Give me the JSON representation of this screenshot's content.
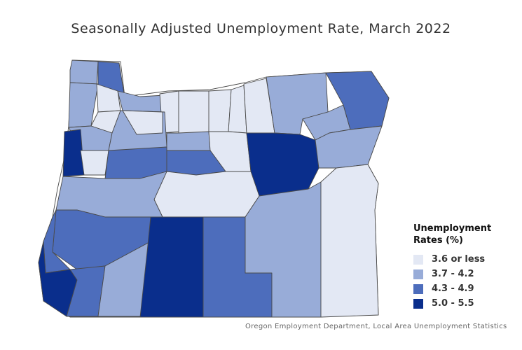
{
  "title": "Seasonally Adjusted Unemployment Rate, March 2022",
  "source": "Oregon Employment Department, Local Area Unemployment Statistics",
  "legend": {
    "title": "Unemployment Rates (%)",
    "items": [
      {
        "label": "3.6 or less",
        "color": "#e3e8f4"
      },
      {
        "label": "3.7 - 4.2",
        "color": "#98acd8"
      },
      {
        "label": "4.3 - 4.9",
        "color": "#4d6dbc"
      },
      {
        "label": "5.0 - 5.5",
        "color": "#0a2e8c"
      }
    ]
  },
  "regions": [
    {
      "name": "clatsop",
      "class": "3.7 - 4.2"
    },
    {
      "name": "columbia",
      "class": "4.3 - 4.9"
    },
    {
      "name": "tillamook",
      "class": "3.7 - 4.2"
    },
    {
      "name": "washington",
      "class": "3.6 or less"
    },
    {
      "name": "multnomah",
      "class": "3.7 - 4.2"
    },
    {
      "name": "hood-river",
      "class": "3.6 or less"
    },
    {
      "name": "wasco",
      "class": "3.6 or less"
    },
    {
      "name": "sherman",
      "class": "3.6 or less"
    },
    {
      "name": "gilliam",
      "class": "3.6 or less"
    },
    {
      "name": "morrow",
      "class": "3.6 or less"
    },
    {
      "name": "umatilla",
      "class": "3.7 - 4.2"
    },
    {
      "name": "union",
      "class": "3.7 - 4.2"
    },
    {
      "name": "wallowa",
      "class": "4.3 - 4.9"
    },
    {
      "name": "yamhill",
      "class": "3.6 or less"
    },
    {
      "name": "polk",
      "class": "3.7 - 4.2"
    },
    {
      "name": "marion",
      "class": "3.7 - 4.2"
    },
    {
      "name": "clackamas",
      "class": "3.6 or less"
    },
    {
      "name": "jefferson",
      "class": "3.7 - 4.2"
    },
    {
      "name": "wheeler",
      "class": "3.6 or less"
    },
    {
      "name": "grant",
      "class": "5.0 - 5.5"
    },
    {
      "name": "baker",
      "class": "3.7 - 4.2"
    },
    {
      "name": "lincoln",
      "class": "5.0 - 5.5"
    },
    {
      "name": "benton",
      "class": "3.6 or less"
    },
    {
      "name": "linn",
      "class": "4.3 - 4.9"
    },
    {
      "name": "crook",
      "class": "4.3 - 4.9"
    },
    {
      "name": "deschutes",
      "class": "3.6 or less"
    },
    {
      "name": "lane",
      "class": "3.7 - 4.2"
    },
    {
      "name": "douglas",
      "class": "4.3 - 4.9"
    },
    {
      "name": "coos",
      "class": "4.3 - 4.9"
    },
    {
      "name": "curry",
      "class": "5.0 - 5.5"
    },
    {
      "name": "josephine",
      "class": "4.3 - 4.9"
    },
    {
      "name": "jackson",
      "class": "3.7 - 4.2"
    },
    {
      "name": "klamath",
      "class": "5.0 - 5.5"
    },
    {
      "name": "lake",
      "class": "4.3 - 4.9"
    },
    {
      "name": "harney",
      "class": "3.7 - 4.2"
    },
    {
      "name": "malheur",
      "class": "3.6 or less"
    }
  ]
}
